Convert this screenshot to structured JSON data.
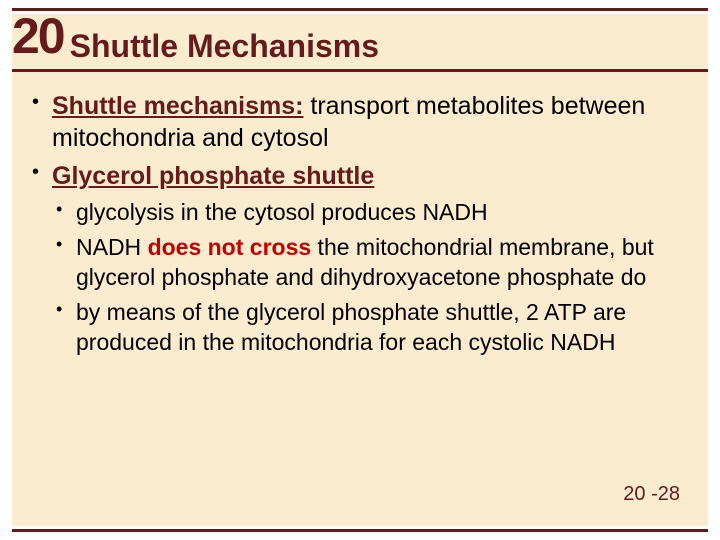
{
  "colors": {
    "rule": "#651b1b",
    "background": "#fbeccf",
    "chapter_num": "#651b1b",
    "title": "#651b1b",
    "body_text": "#000000",
    "term": "#651b1b",
    "emphasis": "#c00000",
    "page_num": "#651b1b"
  },
  "typography": {
    "chapter_num_size": 50,
    "title_size": 32,
    "lvl1_size": 25,
    "lvl2_size": 23,
    "page_num_size": 20
  },
  "header": {
    "chapter_number": "20",
    "title": "Shuttle Mechanisms"
  },
  "bullets_lvl1": [
    {
      "term": "Shuttle mechanisms:",
      "rest": " transport metabolites between mitochondria and cytosol"
    },
    {
      "term": "Glycerol phosphate shuttle",
      "rest": ""
    }
  ],
  "bullets_lvl2": [
    {
      "pre": "glycolysis in the cytosol produces NADH",
      "emph": "",
      "post": ""
    },
    {
      "pre": "NADH ",
      "emph": "does not cross",
      "post": " the mitochondrial membrane, but glycerol phosphate and dihydroxyacetone phosphate do"
    },
    {
      "pre": "by means of the glycerol phosphate shuttle, 2 ATP are produced in the mitochondria for each cystolic NADH",
      "emph": "",
      "post": ""
    }
  ],
  "page_number": "20 -28"
}
